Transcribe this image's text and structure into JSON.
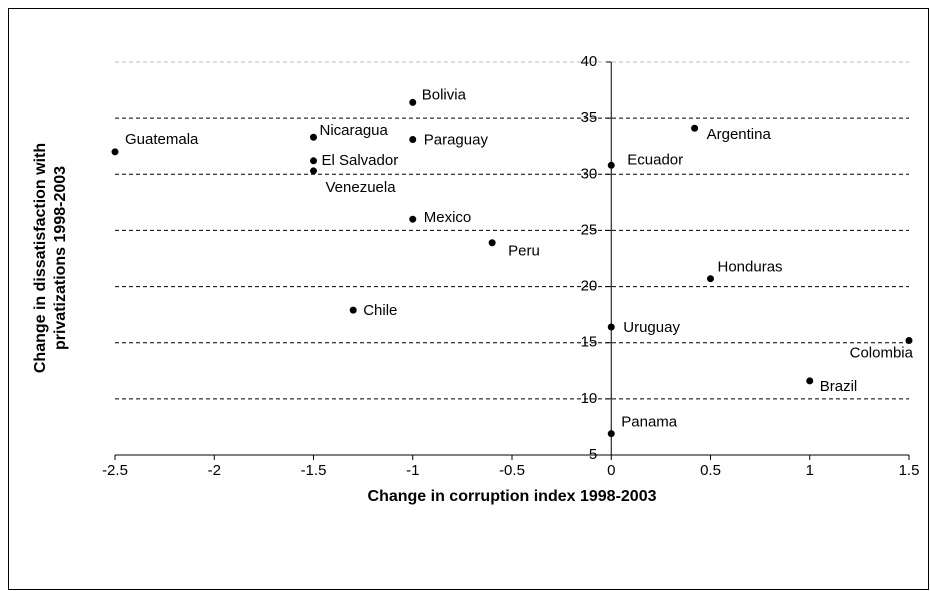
{
  "chart_data": {
    "type": "scatter",
    "x_label": "Change in corruption index 1998-2003",
    "y_label": [
      "Change in dissatisfaction with",
      "privatizations 1998-2003"
    ],
    "labels": [
      "Guatemala",
      "Nicaragua",
      "El Salvador",
      "Venezuela",
      "Bolivia",
      "Paraguay",
      "Mexico",
      "Peru",
      "Chile",
      "Argentina",
      "Ecuador",
      "Honduras",
      "Uruguay",
      "Colombia",
      "Brazil",
      "Panama"
    ],
    "x": [
      -2.5,
      -1.5,
      -1.5,
      -1.5,
      -1,
      -1,
      -1,
      -0.6,
      -1.3,
      0.42,
      0,
      0.5,
      0,
      1.5,
      1,
      0
    ],
    "values": [
      32,
      33.3,
      31.2,
      30.3,
      36.4,
      33.1,
      26,
      23.9,
      17.9,
      34.1,
      30.8,
      20.7,
      16.4,
      15.2,
      11.6,
      6.9
    ],
    "color": "#000000",
    "xlim": [
      -2.5,
      1.5
    ],
    "xticks": [
      -2.5,
      -2,
      -1.5,
      -1,
      -0.5,
      0,
      0.5,
      1,
      1.5
    ],
    "ylim": [
      5,
      40
    ],
    "yticks": [
      5,
      10,
      15,
      20,
      25,
      30,
      35,
      40
    ],
    "grid": true
  }
}
